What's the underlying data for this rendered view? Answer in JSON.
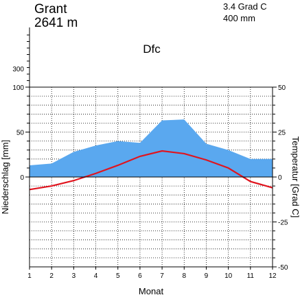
{
  "station": {
    "name": "Grant",
    "elevation": "2641 m"
  },
  "stats": {
    "mean_temp": "3.4 Grad C",
    "annual_precip": "400 mm"
  },
  "climate_class": "Dfc",
  "chart_data": {
    "type": "area",
    "xlabel": "Monat",
    "ylabel_left": "Niederschlag [mm]",
    "ylabel_right": "Temperatur [Grad C]",
    "x": [
      1,
      2,
      3,
      4,
      5,
      6,
      7,
      8,
      9,
      10,
      11,
      12
    ],
    "x_ticks": [
      "1",
      "2",
      "3",
      "4",
      "5",
      "6",
      "7",
      "8",
      "9",
      "10",
      "11",
      "12"
    ],
    "precip_ticks": [
      "0",
      "50",
      "100",
      "300"
    ],
    "temp_ticks": [
      "-50",
      "-25",
      "0",
      "25",
      "50"
    ],
    "precip_range": [
      0,
      100
    ],
    "precip_compressed_label": "300",
    "temp_range": [
      -50,
      50
    ],
    "grid": true,
    "series": [
      {
        "kind": "precipitation",
        "unit": "mm",
        "color": "#5aa8ef",
        "values": [
          13,
          15,
          28,
          35,
          40,
          38,
          63,
          64,
          37,
          30,
          20,
          20
        ]
      },
      {
        "kind": "temperature",
        "unit": "Grad C",
        "color": "#e0141e",
        "values": [
          -7,
          -5,
          -2,
          2,
          6.5,
          11.5,
          14.5,
          13,
          9.5,
          5,
          -2.5,
          -6
        ]
      }
    ]
  }
}
